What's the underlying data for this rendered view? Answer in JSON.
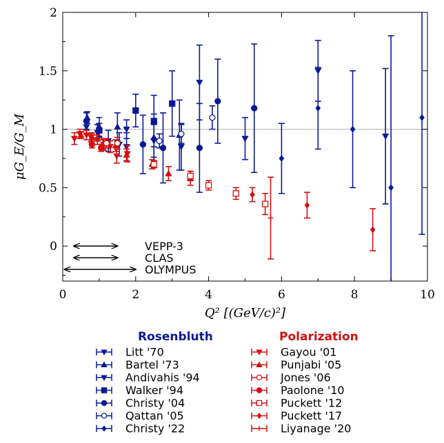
{
  "colors": {
    "rosenbluth": "#0a1a96",
    "polarization": "#d41010",
    "reference": "#bbbbbb",
    "arrow": "#000000"
  },
  "chart_data": {
    "type": "scatter",
    "xlabel": "Q² [(GeV/c)²]",
    "ylabel": "μG_E/G_M",
    "xlim": [
      0,
      10
    ],
    "ylim": [
      -0.3,
      2
    ],
    "x_ticks": [
      "0",
      "2",
      "4",
      "6",
      "8",
      "10"
    ],
    "y_ticks": [
      "0",
      "0.5",
      "1",
      "1.5",
      "2"
    ],
    "reference_line": 1,
    "kinematic_ranges": [
      {
        "label": "VEPP-3",
        "x": [
          0.3,
          1.5
        ],
        "y": -0.0
      },
      {
        "label": "CLAS",
        "x": [
          0.3,
          1.5
        ],
        "y": -0.1
      },
      {
        "label": "OLYMPUS",
        "x": [
          0.05,
          2.0
        ],
        "y": -0.2
      }
    ],
    "groups": [
      {
        "name": "Rosenbluth",
        "color": "#0a1a96",
        "series": [
          {
            "name": "Litt '70",
            "marker": "tri-down",
            "points": [
              [
                0.65,
                1.02,
                0.06
              ],
              [
                0.95,
                0.97,
                0.07
              ],
              [
                1.25,
                0.9,
                0.09
              ],
              [
                1.55,
                0.87,
                0.1
              ],
              [
                1.75,
                0.85,
                0.12
              ]
            ]
          },
          {
            "name": "Bartel '73",
            "marker": "tri-up",
            "points": [
              [
                0.67,
                1.1,
                0.05
              ],
              [
                1.0,
                1.02,
                0.08
              ],
              [
                1.5,
                1.02,
                0.12
              ],
              [
                2.5,
                0.93,
                0.2
              ],
              [
                3.2,
                0.95,
                0.3
              ]
            ]
          },
          {
            "name": "Andivahis '94",
            "marker": "tri-down",
            "points": [
              [
                1.75,
                1.0,
                0.08
              ],
              [
                2.5,
                0.9,
                0.14
              ],
              [
                3.25,
                0.85,
                0.2
              ],
              [
                3.75,
                1.4,
                0.32
              ],
              [
                5.0,
                0.92,
                0.18
              ],
              [
                7.0,
                1.5,
                0.26
              ],
              [
                8.85,
                0.94,
                0.58
              ]
            ]
          },
          {
            "name": "Walker '94",
            "marker": "square",
            "points": [
              [
                1.0,
                0.99,
                0.06
              ],
              [
                2.0,
                1.16,
                0.14
              ],
              [
                2.5,
                1.07,
                0.22
              ],
              [
                3.0,
                1.22,
                0.28
              ]
            ]
          },
          {
            "name": "Christy '04",
            "marker": "circle",
            "points": [
              [
                0.65,
                1.07,
                0.07
              ],
              [
                2.2,
                0.87,
                0.25
              ],
              [
                2.75,
                0.84,
                0.3
              ],
              [
                3.75,
                0.84,
                0.38
              ],
              [
                4.25,
                1.24,
                0.36
              ],
              [
                5.25,
                1.18,
                0.55
              ]
            ]
          },
          {
            "name": "Qattan '05",
            "marker": "circle-open",
            "points": [
              [
                2.65,
                0.9,
                0.06
              ],
              [
                3.25,
                0.96,
                0.08
              ],
              [
                4.1,
                1.1,
                0.1
              ]
            ]
          },
          {
            "name": "Christy '22",
            "marker": "diamond",
            "points": [
              [
                6.0,
                0.75,
                0.3
              ],
              [
                7.0,
                1.18,
                0.35
              ],
              [
                7.95,
                1.0,
                0.5
              ],
              [
                9.0,
                0.5,
                1.3
              ],
              [
                9.85,
                1.1,
                1.0
              ]
            ]
          }
        ]
      },
      {
        "name": "Polarization",
        "color": "#d41010",
        "series": [
          {
            "name": "Gayou '01",
            "marker": "tri-down",
            "points": [
              [
                0.32,
                0.92,
                0.05
              ],
              [
                0.47,
                0.96,
                0.04
              ],
              [
                0.65,
                0.95,
                0.04
              ],
              [
                0.78,
                0.93,
                0.04
              ],
              [
                0.95,
                0.91,
                0.04
              ],
              [
                1.12,
                0.87,
                0.05
              ],
              [
                1.3,
                0.85,
                0.05
              ],
              [
                1.48,
                0.77,
                0.06
              ],
              [
                1.77,
                0.79,
                0.07
              ]
            ]
          },
          {
            "name": "Punjabi '05",
            "marker": "tri-up",
            "points": [
              [
                0.5,
                0.95,
                0.03
              ],
              [
                0.8,
                0.93,
                0.03
              ],
              [
                1.1,
                0.87,
                0.04
              ],
              [
                1.45,
                0.86,
                0.05
              ],
              [
                1.75,
                0.78,
                0.05
              ],
              [
                2.45,
                0.7,
                0.04
              ],
              [
                2.9,
                0.62,
                0.06
              ],
              [
                3.5,
                0.58,
                0.06
              ]
            ]
          },
          {
            "name": "Jones '06",
            "marker": "circle-open",
            "points": [
              [
                1.2,
                0.88,
                0.04
              ],
              [
                1.5,
                0.88,
                0.05
              ]
            ]
          },
          {
            "name": "Paolone '10",
            "marker": "circle",
            "points": [
              [
                0.8,
                0.87,
                0.03
              ],
              [
                1.05,
                0.84,
                0.03
              ]
            ]
          },
          {
            "name": "Puckett '12",
            "marker": "square-open",
            "points": [
              [
                2.5,
                0.7,
                0.03
              ],
              [
                3.5,
                0.6,
                0.04
              ],
              [
                4.0,
                0.52,
                0.04
              ],
              [
                4.75,
                0.45,
                0.05
              ],
              [
                5.55,
                0.36,
                0.09
              ]
            ]
          },
          {
            "name": "Puckett '17",
            "marker": "diamond",
            "points": [
              [
                5.2,
                0.44,
                0.06
              ],
              [
                6.7,
                0.35,
                0.11
              ],
              [
                8.5,
                0.14,
                0.18
              ]
            ]
          },
          {
            "name": "Liyanage '20",
            "marker": "plus",
            "points": [
              [
                5.7,
                0.24,
                0.35
              ]
            ]
          }
        ]
      }
    ]
  }
}
